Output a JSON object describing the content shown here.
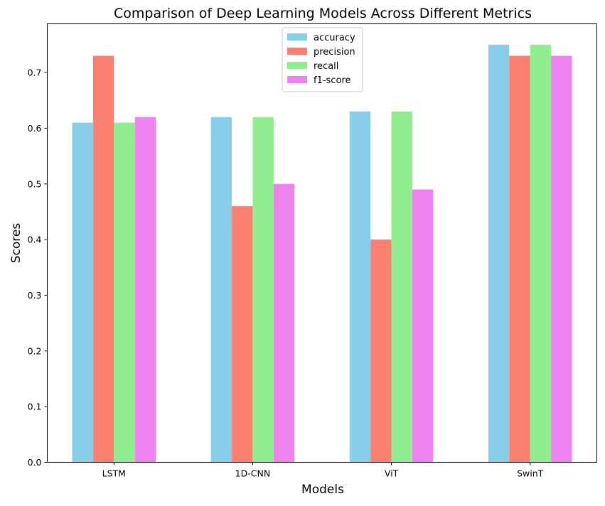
{
  "chart_data": {
    "type": "bar",
    "title": "Comparison of Deep Learning Models Across Different Metrics",
    "xlabel": "Models",
    "ylabel": "Scores",
    "categories": [
      "LSTM",
      "1D-CNN",
      "ViT",
      "SwinT"
    ],
    "series": [
      {
        "name": "accuracy",
        "color": "#87CEEB",
        "values": [
          0.61,
          0.62,
          0.63,
          0.75
        ]
      },
      {
        "name": "precision",
        "color": "#FA8072",
        "values": [
          0.73,
          0.46,
          0.4,
          0.73
        ]
      },
      {
        "name": "recall",
        "color": "#90EE90",
        "values": [
          0.61,
          0.62,
          0.63,
          0.75
        ]
      },
      {
        "name": "f1-score",
        "color": "#EE82EE",
        "values": [
          0.62,
          0.5,
          0.49,
          0.73
        ]
      }
    ],
    "yticks": [
      0.0,
      0.1,
      0.2,
      0.3,
      0.4,
      0.5,
      0.6,
      0.7
    ],
    "ylim": [
      0,
      0.7875
    ],
    "grid": false,
    "legend_position": "top-center"
  }
}
